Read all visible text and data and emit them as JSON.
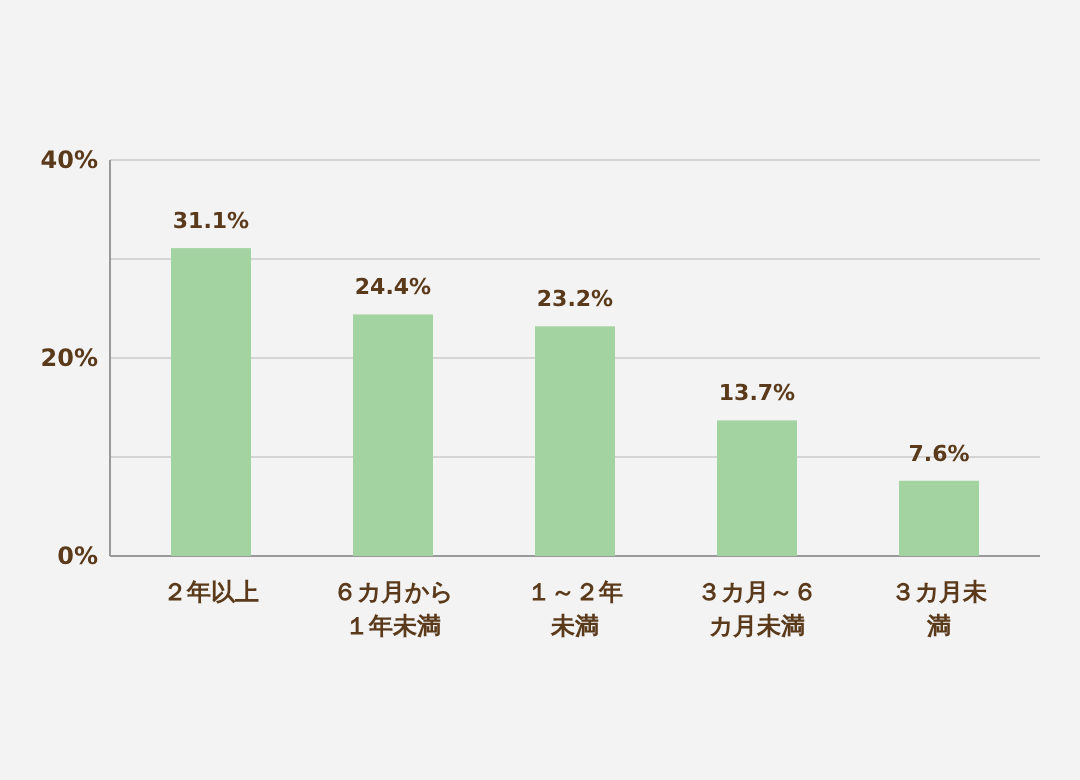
{
  "chart_data": {
    "type": "bar",
    "categories": [
      "２年以上",
      "６カ月から１年未満",
      "１～２年未満",
      "３カ月～６カ月未満",
      "３カ月未満"
    ],
    "values": [
      31.1,
      24.4,
      23.2,
      13.7,
      7.6
    ],
    "value_labels": [
      "31.1%",
      "24.4%",
      "23.2%",
      "13.7%",
      "7.6%"
    ],
    "color": "#a3d3a0",
    "ylim": [
      0,
      40
    ],
    "yticks": [
      {
        "value": 0,
        "label": "0%"
      },
      {
        "value": 10,
        "label": null
      },
      {
        "value": 20,
        "label": "20%"
      },
      {
        "value": 30,
        "label": null
      },
      {
        "value": 40,
        "label": "40%"
      }
    ],
    "grid": "y"
  }
}
